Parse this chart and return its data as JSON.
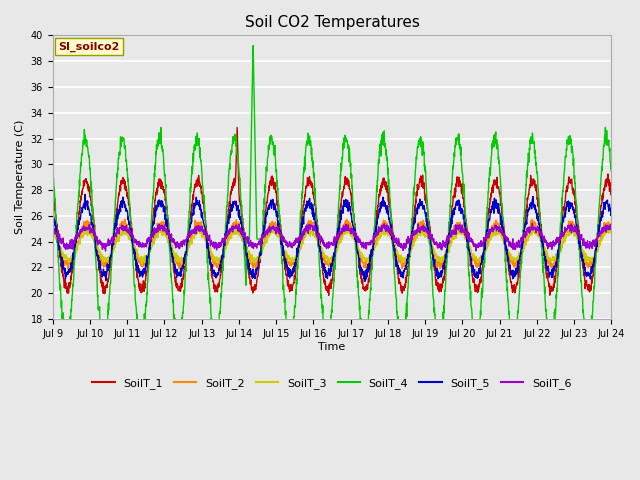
{
  "title": "Soil CO2 Temperatures",
  "xlabel": "Time",
  "ylabel": "Soil Temperature (C)",
  "ylim": [
    18,
    40
  ],
  "xlim_days": [
    9,
    24
  ],
  "annotation": "SI_soilco2",
  "annotation_bg": "#ffffcc",
  "annotation_fg": "#8b0000",
  "series_colors": {
    "SoilT_1": "#cc0000",
    "SoilT_2": "#ff8800",
    "SoilT_3": "#cccc00",
    "SoilT_4": "#00cc00",
    "SoilT_5": "#0000cc",
    "SoilT_6": "#9900cc"
  },
  "bg_color": "#e8e8e8",
  "plot_bg": "#e8e8e8",
  "grid_color": "#ffffff",
  "linewidth": 1.0,
  "yticks": [
    18,
    20,
    22,
    24,
    26,
    28,
    30,
    32,
    34,
    36,
    38,
    40
  ],
  "xtick_labels": [
    "Jul 9",
    "Jul 10",
    "Jul 11",
    "Jul 12",
    "Jul 13",
    "Jul 14",
    "Jul 15",
    "Jul 16",
    "Jul 17",
    "Jul 18",
    "Jul 19",
    "Jul 20",
    "Jul 21",
    "Jul 22",
    "Jul 23",
    "Jul 24"
  ],
  "xtick_positions": [
    9,
    10,
    11,
    12,
    13,
    14,
    15,
    16,
    17,
    18,
    19,
    20,
    21,
    22,
    23,
    24
  ]
}
